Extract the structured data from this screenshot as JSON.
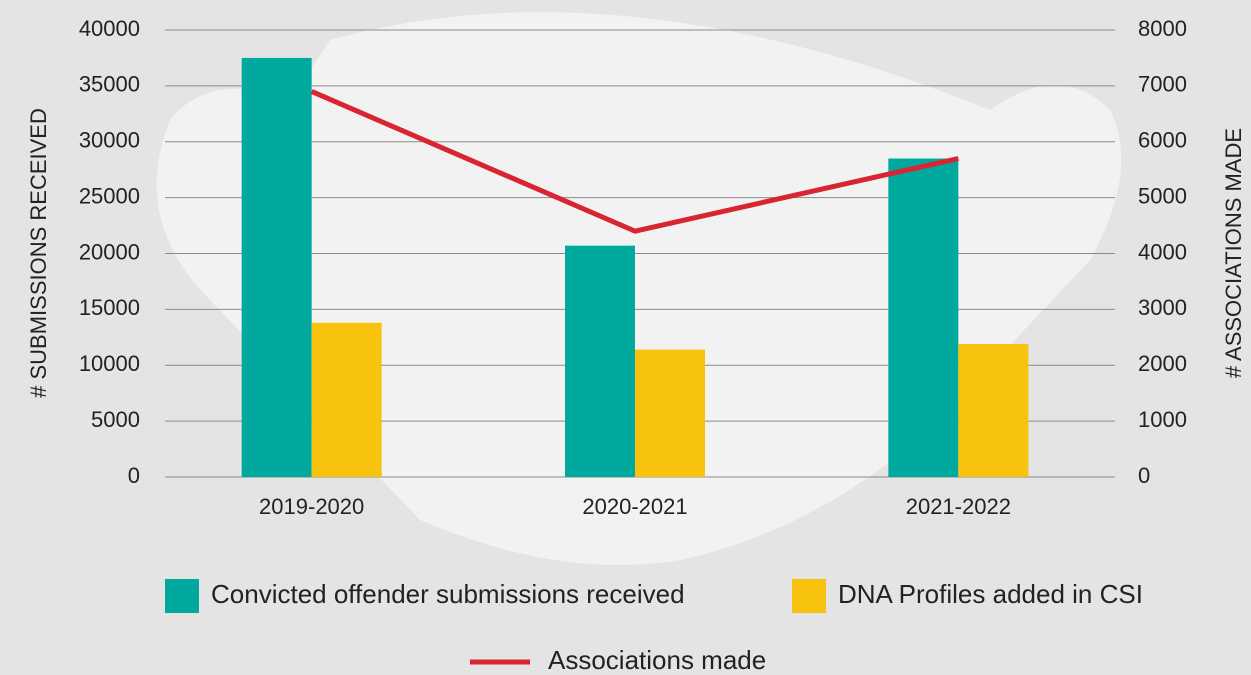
{
  "chart_data": {
    "type": "bar",
    "categories": [
      "2019-2020",
      "2020-2021",
      "2021-2022"
    ],
    "series": [
      {
        "name": "Convicted offender submissions received",
        "color": "#00a99d",
        "values": [
          37500,
          20700,
          28500
        ]
      },
      {
        "name": "DNA Profiles added in CSI",
        "color": "#f7c30f",
        "values": [
          13800,
          11400,
          11900
        ]
      },
      {
        "name": "Associations made",
        "type": "line",
        "axis": "y2",
        "color": "#d92432",
        "values": [
          6900,
          4400,
          5700
        ]
      }
    ],
    "y_label": "# SUBMISSIONS RECEIVED",
    "y2_label": "# ASSOCIATIONS MADE",
    "ylim": [
      0,
      40000
    ],
    "yticks": [
      0,
      5000,
      10000,
      15000,
      20000,
      25000,
      30000,
      35000,
      40000
    ],
    "y2lim": [
      0,
      8000
    ],
    "y2ticks": [
      0,
      1000,
      2000,
      3000,
      4000,
      5000,
      6000,
      7000,
      8000
    ],
    "grid": true
  }
}
